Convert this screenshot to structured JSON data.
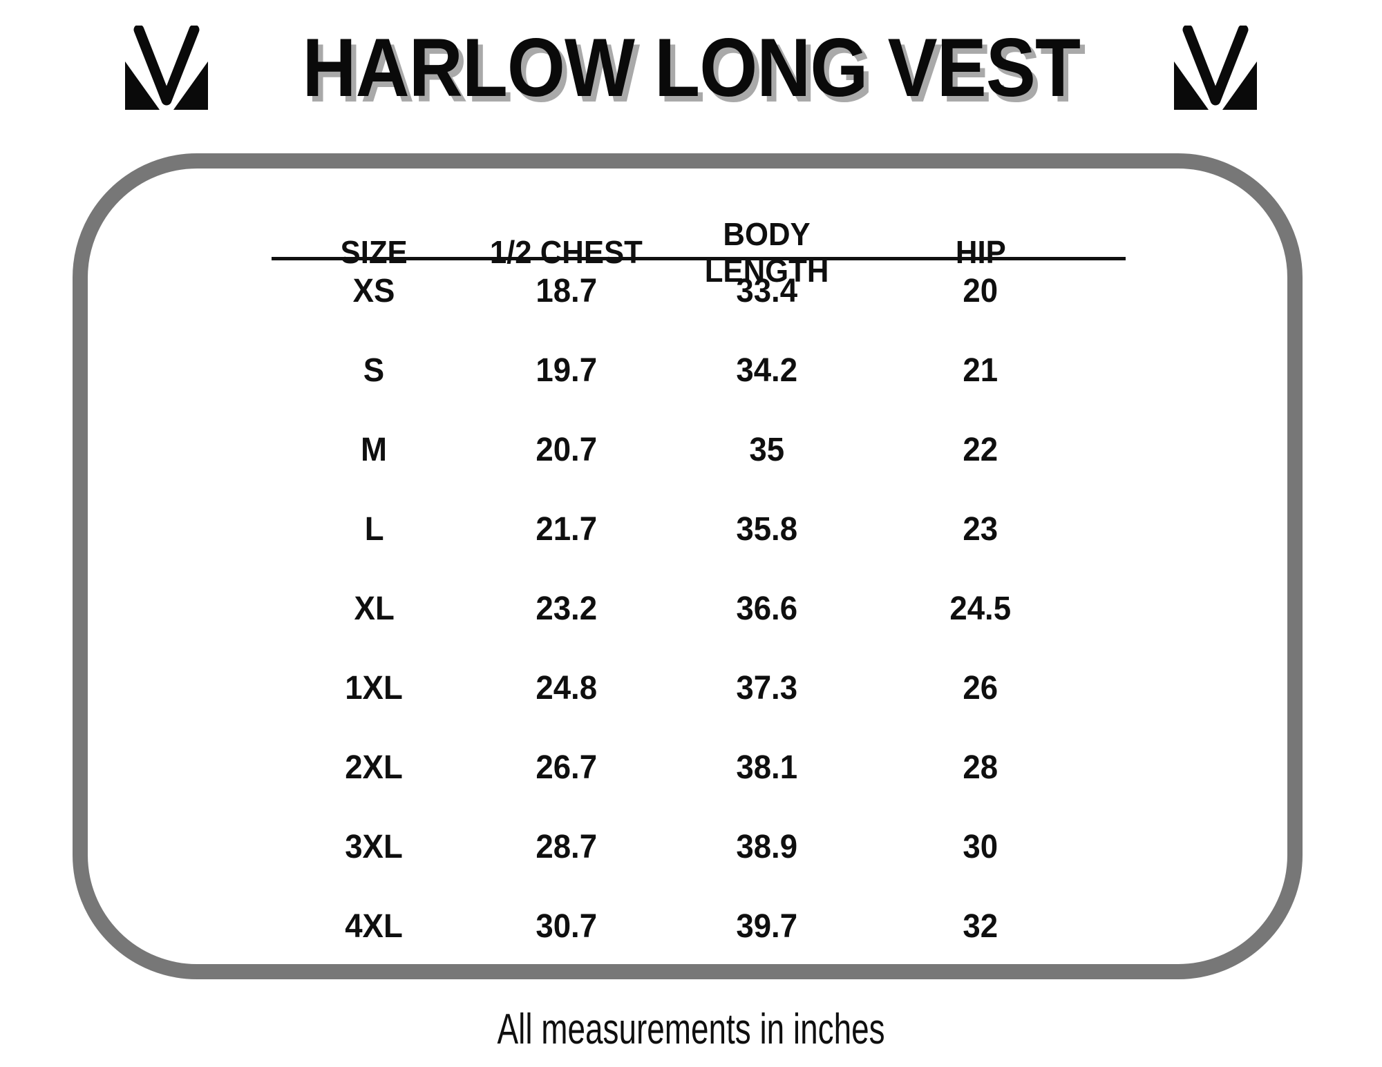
{
  "page": {
    "title": "HARLOW LONG VEST",
    "footer_note": "All measurements in inches"
  },
  "chart_data": {
    "type": "table",
    "title": "HARLOW LONG VEST",
    "units": "inches",
    "columns": [
      "SIZE",
      "1/2 CHEST",
      "BODY\nLENGTH",
      "HIP"
    ],
    "rows": [
      {
        "size": "XS",
        "half_chest": 18.7,
        "body_length": 33.4,
        "hip": 20
      },
      {
        "size": "S",
        "half_chest": 19.7,
        "body_length": 34.2,
        "hip": 21
      },
      {
        "size": "M",
        "half_chest": 20.7,
        "body_length": 35,
        "hip": 22
      },
      {
        "size": "L",
        "half_chest": 21.7,
        "body_length": 35.8,
        "hip": 23
      },
      {
        "size": "XL",
        "half_chest": 23.2,
        "body_length": 36.6,
        "hip": 24.5
      },
      {
        "size": "1XL",
        "half_chest": 24.8,
        "body_length": 37.3,
        "hip": 26
      },
      {
        "size": "2XL",
        "half_chest": 26.7,
        "body_length": 38.1,
        "hip": 28
      },
      {
        "size": "3XL",
        "half_chest": 28.7,
        "body_length": 38.9,
        "hip": 30
      },
      {
        "size": "4XL",
        "half_chest": 30.7,
        "body_length": 39.7,
        "hip": 32
      }
    ]
  },
  "icons": {
    "left_logo": "brand-monogram-icon",
    "right_logo": "brand-monogram-icon"
  },
  "colors": {
    "frame_border": "#777777",
    "text": "#0f0f0f",
    "title_shadow": "#a9a9a9",
    "header_rule": "#101010"
  }
}
